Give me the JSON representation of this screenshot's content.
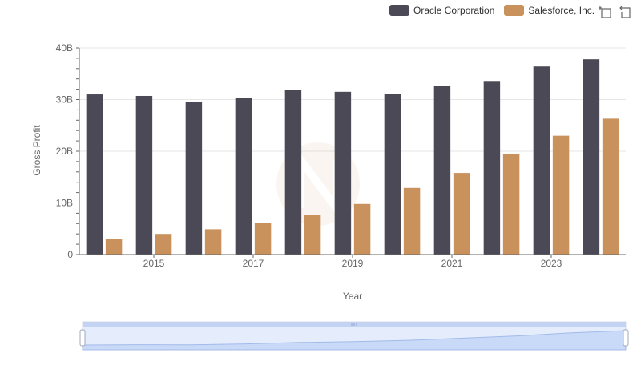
{
  "legend": {
    "items": [
      {
        "label": "Oracle Corporation",
        "color": "#4a4955"
      },
      {
        "label": "Salesforce, Inc.",
        "color": "#c9915c"
      }
    ]
  },
  "toolbox": {
    "icons": [
      "zoom-icon",
      "restore-icon"
    ]
  },
  "chart_data": {
    "type": "bar",
    "x": [
      2014,
      2015,
      2016,
      2017,
      2018,
      2019,
      2020,
      2021,
      2022,
      2023,
      2024
    ],
    "xtick_labels": [
      "2015",
      "2017",
      "2019",
      "2021",
      "2023"
    ],
    "series": [
      {
        "name": "Oracle Corporation",
        "color": "#4a4955",
        "values": [
          31.0,
          30.7,
          29.6,
          30.3,
          31.8,
          31.5,
          31.1,
          32.6,
          33.6,
          36.4,
          37.8
        ]
      },
      {
        "name": "Salesforce, Inc.",
        "color": "#c9915c",
        "values": [
          3.1,
          4.0,
          4.9,
          6.2,
          7.7,
          9.8,
          12.9,
          15.8,
          19.5,
          23.0,
          26.3
        ]
      }
    ],
    "xlabel": "Year",
    "ylabel": "Gross Profit",
    "ylim": [
      0,
      40
    ],
    "yticks": [
      0,
      10,
      20,
      30,
      40
    ],
    "ytick_labels": [
      "0",
      "10B",
      "20B",
      "30B",
      "40B"
    ],
    "grid": true,
    "legend_position": "top-right",
    "has_data_zoom_slider": true
  }
}
